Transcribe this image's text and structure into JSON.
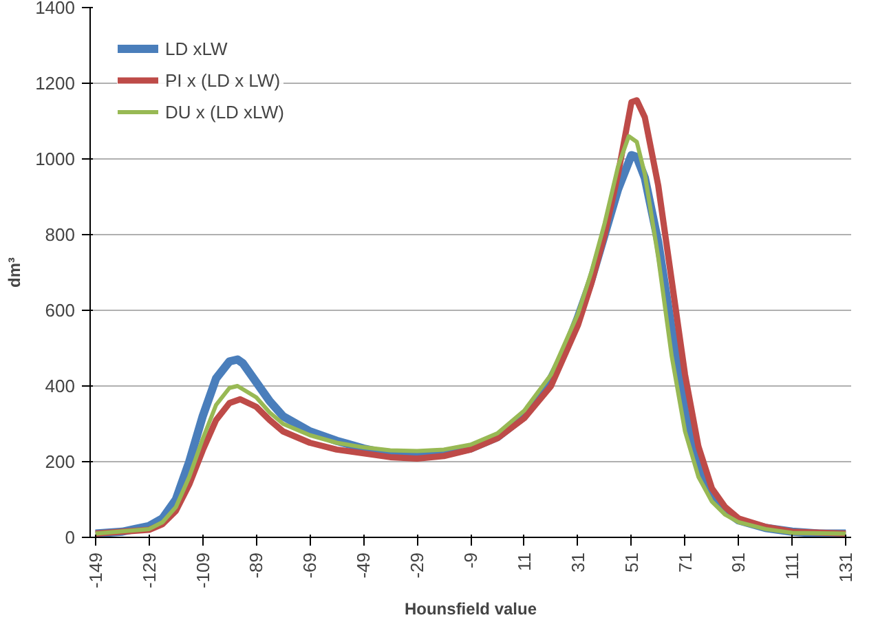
{
  "chart_data": {
    "type": "line",
    "xlabel": "Hounsfield value",
    "ylabel": "dm³",
    "xlim": [
      -151,
      133
    ],
    "xticks": [
      -149,
      -129,
      -109,
      -89,
      -69,
      -49,
      -29,
      -9,
      11,
      31,
      51,
      71,
      91,
      111,
      131
    ],
    "ylim": [
      0,
      1400
    ],
    "yticks": [
      0,
      200,
      400,
      600,
      800,
      1000,
      1200,
      1400
    ],
    "grid": "y",
    "legend": "top left",
    "marker": "none",
    "line_style": "solid",
    "series": [
      {
        "name": "LD xLW",
        "color": "#4a7ebb",
        "x": [
          -149,
          -139,
          -129,
          -124,
          -119,
          -114,
          -109,
          -104,
          -99,
          -96,
          -94,
          -89,
          -84,
          -79,
          -69,
          -59,
          -49,
          -39,
          -29,
          -19,
          -9,
          1,
          11,
          21,
          26,
          31,
          36,
          41,
          46,
          51,
          53,
          56,
          61,
          66,
          71,
          76,
          81,
          86,
          91,
          101,
          111,
          121,
          131
        ],
        "values": [
          10,
          15,
          30,
          50,
          100,
          200,
          320,
          420,
          465,
          470,
          460,
          410,
          360,
          320,
          280,
          255,
          235,
          220,
          215,
          220,
          235,
          265,
          320,
          420,
          490,
          580,
          680,
          800,
          920,
          1010,
          1005,
          950,
          780,
          550,
          330,
          190,
          110,
          70,
          45,
          25,
          15,
          10,
          10
        ]
      },
      {
        "name": "PI x (LD x LW)",
        "color": "#be4b48",
        "x": [
          -149,
          -129,
          -124,
          -119,
          -114,
          -109,
          -104,
          -99,
          -95,
          -89,
          -84,
          -79,
          -69,
          -59,
          -49,
          -39,
          -29,
          -19,
          -9,
          1,
          11,
          21,
          31,
          36,
          41,
          46,
          51,
          53,
          56,
          61,
          66,
          71,
          76,
          81,
          86,
          91,
          101,
          111,
          131
        ],
        "values": [
          10,
          20,
          35,
          70,
          140,
          230,
          310,
          355,
          365,
          345,
          310,
          280,
          250,
          232,
          222,
          212,
          208,
          215,
          232,
          262,
          315,
          400,
          560,
          670,
          800,
          960,
          1150,
          1155,
          1110,
          930,
          680,
          430,
          240,
          130,
          80,
          50,
          28,
          15,
          10
        ]
      },
      {
        "name": "DU x (LD xLW)",
        "color": "#98b954",
        "x": [
          -149,
          -129,
          -124,
          -119,
          -114,
          -109,
          -104,
          -99,
          -96,
          -89,
          -84,
          -79,
          -69,
          -59,
          -49,
          -39,
          -29,
          -19,
          -9,
          1,
          11,
          21,
          31,
          36,
          41,
          46,
          50,
          53,
          56,
          61,
          66,
          71,
          76,
          81,
          86,
          91,
          101,
          111,
          131
        ],
        "values": [
          10,
          22,
          40,
          80,
          160,
          260,
          350,
          395,
          400,
          370,
          330,
          300,
          270,
          250,
          238,
          230,
          228,
          232,
          245,
          275,
          335,
          430,
          590,
          700,
          830,
          980,
          1060,
          1045,
          960,
          740,
          480,
          280,
          160,
          95,
          60,
          40,
          22,
          12,
          10
        ]
      }
    ]
  }
}
